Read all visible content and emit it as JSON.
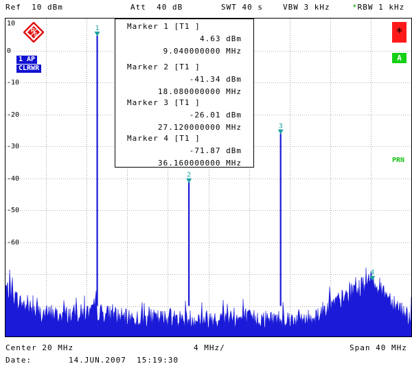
{
  "header": {
    "ref": "Ref  10 dBm",
    "att": "Att  40 dB",
    "swt": "SWT 40 s",
    "vbw": "VBW 3 kHz",
    "rbw_star": "*",
    "rbw": "RBW 1 kHz"
  },
  "screen": {
    "level_labels": [
      "10",
      "0",
      "-10",
      "-20",
      "-30",
      "-40",
      "-50",
      "-60"
    ],
    "trace_tag_1": "1 AP",
    "trace_tag_2": "CLRWR",
    "red_box_label": "*",
    "green_box_label": "A",
    "prn_label": "PRN"
  },
  "marker_table": {
    "rows": [
      {
        "title": "Marker 1 [T1 ]",
        "level": "4.63 dBm",
        "freq": "9.040000000 MHz"
      },
      {
        "title": "Marker 2 [T1 ]",
        "level": "-41.34 dBm",
        "freq": "18.080000000 MHz"
      },
      {
        "title": "Marker 3 [T1 ]",
        "level": "-26.01 dBm",
        "freq": "27.120000000 MHz"
      },
      {
        "title": "Marker 4 [T1 ]",
        "level": "-71.87 dBm",
        "freq": "36.160000000 MHz"
      }
    ]
  },
  "markers": [
    {
      "label": "1",
      "freq_mhz": 9.04,
      "level_dbm": 4.63
    },
    {
      "label": "2",
      "freq_mhz": 18.08,
      "level_dbm": -41.34
    },
    {
      "label": "3",
      "freq_mhz": 27.12,
      "level_dbm": -26.01
    },
    {
      "label": "4",
      "freq_mhz": 36.16,
      "level_dbm": -71.87
    }
  ],
  "footer": {
    "center": "Center 20 MHz",
    "div": "4 MHz/",
    "span": "Span 40 MHz",
    "date_label": "Date:",
    "date_value": "14.JUN.2007  15:19:30"
  },
  "chart_data": {
    "type": "line",
    "xlim": [
      0,
      40
    ],
    "ylim": [
      -90,
      10
    ],
    "grid": true,
    "series": [
      {
        "values": [
          [
            0,
            -74
          ],
          [
            0.5,
            -76
          ],
          [
            1.5,
            -79
          ],
          [
            3,
            -82
          ],
          [
            5,
            -83
          ],
          [
            8.8,
            -82
          ],
          [
            9.04,
            4.63
          ],
          [
            9.3,
            -82
          ],
          [
            12,
            -84
          ],
          [
            18.08,
            -41.34
          ],
          [
            20,
            -84
          ],
          [
            27.12,
            -26.01
          ],
          [
            30,
            -84
          ],
          [
            36.16,
            -71.87
          ],
          [
            40,
            -84
          ]
        ]
      }
    ],
    "colors": {
      "trace": "#1a1ad8",
      "marker": "#1aa0a0",
      "box": "#000000"
    }
  }
}
